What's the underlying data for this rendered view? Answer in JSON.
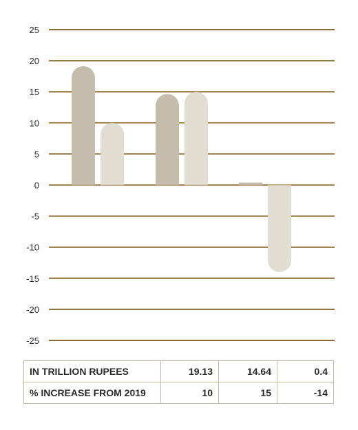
{
  "chart_data": {
    "type": "bar",
    "categories": [
      "",
      "",
      ""
    ],
    "series": [
      {
        "values": [
          19.13,
          14.64,
          0.4
        ],
        "color": "#c5bcab"
      },
      {
        "values": [
          10,
          15,
          -14
        ],
        "color": "#e1ddd1"
      }
    ],
    "ylim": [
      -25,
      25
    ],
    "yticks": [
      25,
      20,
      15,
      10,
      5,
      0,
      -5,
      -10,
      -15,
      -20,
      -25
    ],
    "grid": true,
    "grid_color": "#8b6a2e",
    "title": "",
    "xlabel": "",
    "ylabel": ""
  },
  "table": {
    "rows": [
      {
        "label": "IN TRILLION RUPEES",
        "values": [
          "19.13",
          "14.64",
          "0.4"
        ]
      },
      {
        "label": "% INCREASE FROM 2019",
        "values": [
          "10",
          "15",
          "-14"
        ]
      }
    ]
  }
}
